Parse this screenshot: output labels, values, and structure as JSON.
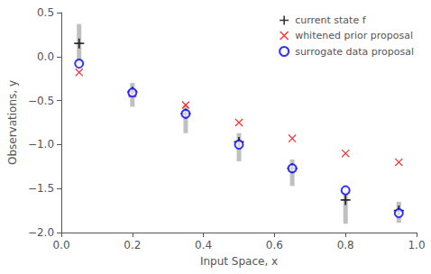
{
  "chart_data": {
    "type": "scatter",
    "xlabel": "Input Space, x",
    "ylabel": "Observations, y",
    "x": [
      0.05,
      0.2,
      0.35,
      0.5,
      0.65,
      0.8,
      0.95
    ],
    "series": [
      {
        "name": "current state f",
        "color": "black",
        "marker": "plus",
        "values": [
          0.15,
          -0.4,
          -0.65,
          -0.97,
          -1.27,
          -1.63,
          -1.75
        ],
        "err_low": [
          0.23,
          0.17,
          0.22,
          0.22,
          0.2,
          0.27,
          0.14
        ],
        "err_high": [
          0.22,
          0.1,
          0.1,
          0.1,
          0.1,
          0.1,
          0.1
        ]
      },
      {
        "name": "whitened prior proposal",
        "color": "red",
        "marker": "x",
        "values": [
          -0.18,
          -0.42,
          -0.55,
          -0.75,
          -0.93,
          -1.1,
          -1.2
        ]
      },
      {
        "name": "surrogate data proposal",
        "color": "blue",
        "marker": "open_circle",
        "values": [
          -0.08,
          -0.41,
          -0.65,
          -1.0,
          -1.27,
          -1.52,
          -1.78
        ]
      }
    ],
    "xlim": [
      0,
      1.0
    ],
    "ylim": [
      -2.0,
      0.5
    ],
    "xticks": [
      {
        "value": 0,
        "label": "0.0"
      },
      0.2,
      0.4,
      0.6,
      0.8,
      {
        "value": 1.0,
        "label": "1.0"
      }
    ],
    "yticks": [
      {
        "value": -2.0,
        "label": "−2.0"
      },
      {
        "value": -1.5,
        "label": "−1.5"
      },
      {
        "value": -1.0,
        "label": "−1.0"
      },
      {
        "value": -0.5,
        "label": "−0.5"
      },
      {
        "value": 0.0,
        "label": "0.0"
      },
      0.5
    ],
    "grid": false,
    "legend": "upper right"
  }
}
